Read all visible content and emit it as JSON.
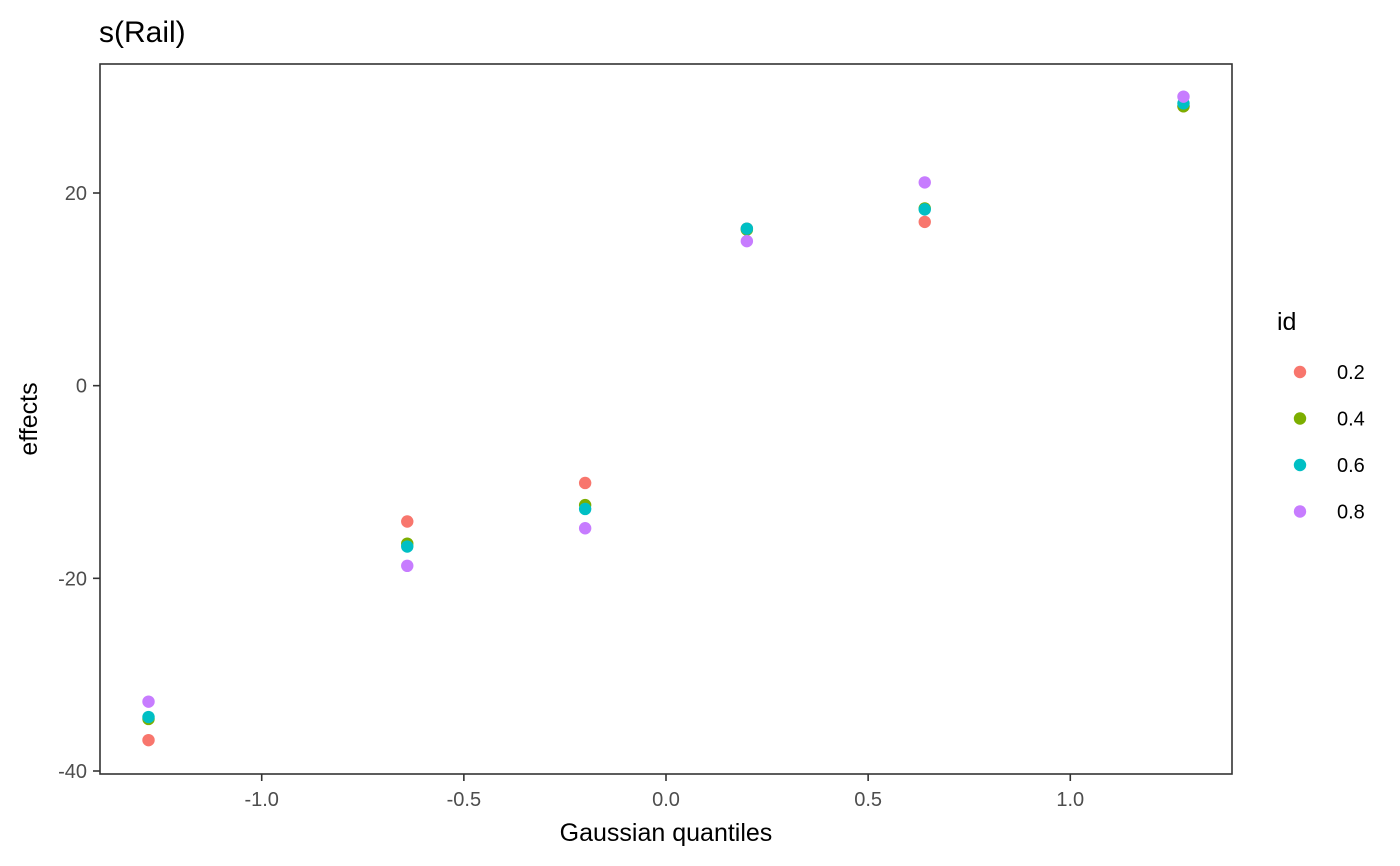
{
  "chart_data": {
    "type": "scatter",
    "title": "s(Rail)",
    "xlabel": "Gaussian quantiles",
    "ylabel": "effects",
    "xlim": [
      -1.4,
      1.4
    ],
    "ylim": [
      -40,
      30
    ],
    "xticks": [
      -1.0,
      -0.5,
      0.0,
      0.5,
      1.0
    ],
    "xtick_labels": [
      "-1.0",
      "-0.5",
      "0.0",
      "0.5",
      "1.0"
    ],
    "yticks": [
      -40,
      -20,
      0,
      20
    ],
    "ytick_labels": [
      "-40",
      "-20",
      "0",
      "20"
    ],
    "grid": false,
    "legend": {
      "title": "id",
      "position": "right"
    },
    "series": [
      {
        "name": "0.2",
        "color": "#F8766D",
        "points": [
          {
            "x": -1.28,
            "y": -36.8
          },
          {
            "x": -0.64,
            "y": -14.1
          },
          {
            "x": -0.2,
            "y": -10.1
          },
          {
            "x": 0.2,
            "y": 16.3
          },
          {
            "x": 0.64,
            "y": 17.0
          },
          {
            "x": 1.28,
            "y": 29.0
          }
        ]
      },
      {
        "name": "0.4",
        "color": "#7CAE00",
        "points": [
          {
            "x": -1.28,
            "y": -34.6
          },
          {
            "x": -0.64,
            "y": -16.4
          },
          {
            "x": -0.2,
            "y": -12.4
          },
          {
            "x": 0.2,
            "y": 16.2
          },
          {
            "x": 0.64,
            "y": 18.4
          },
          {
            "x": 1.28,
            "y": 29.0
          }
        ]
      },
      {
        "name": "0.6",
        "color": "#00BFC4",
        "points": [
          {
            "x": -1.28,
            "y": -34.4
          },
          {
            "x": -0.64,
            "y": -16.7
          },
          {
            "x": -0.2,
            "y": -12.8
          },
          {
            "x": 0.2,
            "y": 16.3
          },
          {
            "x": 0.64,
            "y": 18.3
          },
          {
            "x": 1.28,
            "y": 29.3
          }
        ]
      },
      {
        "name": "0.8",
        "color": "#C77CFF",
        "points": [
          {
            "x": -1.28,
            "y": -32.8
          },
          {
            "x": -0.64,
            "y": -18.7
          },
          {
            "x": -0.2,
            "y": -14.8
          },
          {
            "x": 0.2,
            "y": 15.0
          },
          {
            "x": 0.64,
            "y": 21.1
          },
          {
            "x": 1.28,
            "y": 30.0
          }
        ]
      }
    ]
  }
}
